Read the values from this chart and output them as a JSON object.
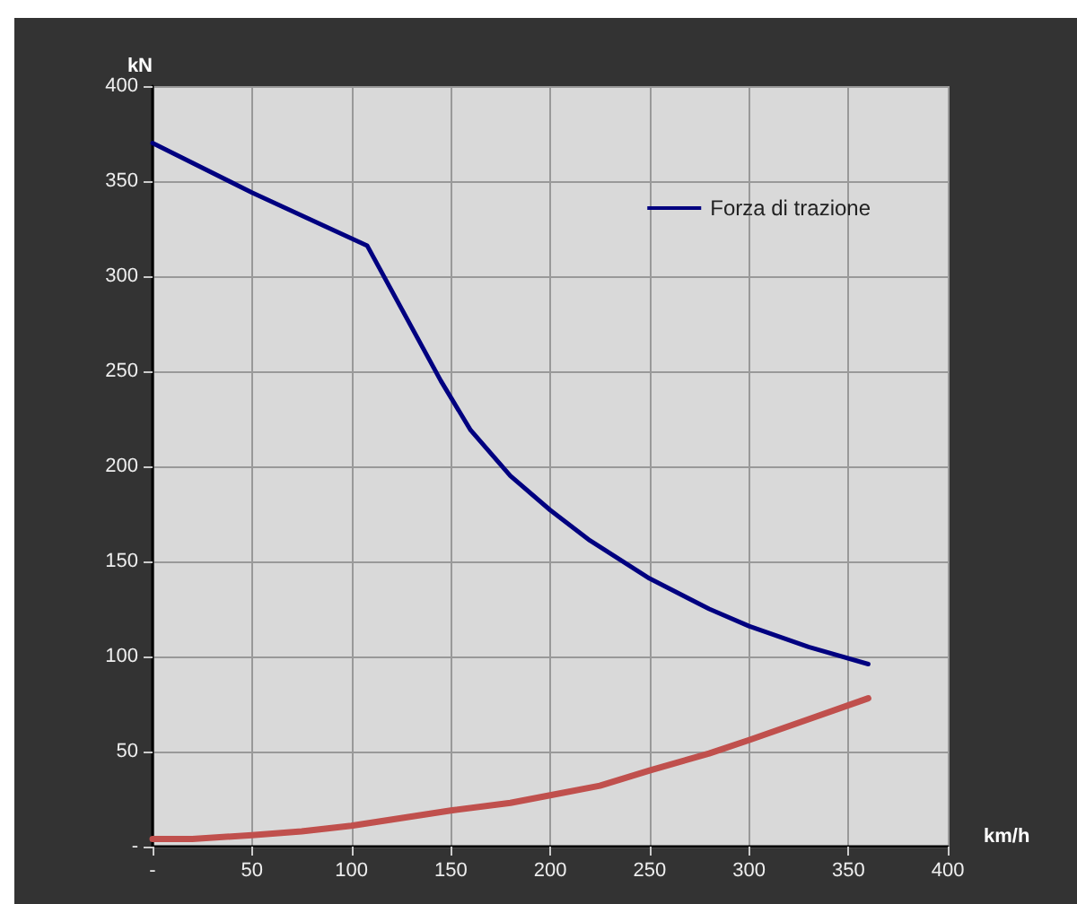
{
  "chart_data": {
    "type": "line",
    "xlabel": "km/h",
    "ylabel": "kN",
    "xlim": [
      0,
      400
    ],
    "xticks": [
      {
        "value": 0,
        "label": "-"
      },
      50,
      100,
      150,
      200,
      250,
      300,
      350,
      400
    ],
    "ylim": [
      0,
      400
    ],
    "yticks": [
      {
        "value": 0,
        "label": "-"
      },
      50,
      100,
      150,
      200,
      250,
      300,
      350,
      400
    ],
    "grid": true,
    "legend": "top right",
    "marker": "none",
    "line_style": "solid",
    "series": [
      {
        "name": "Forza di trazione",
        "color": "#000080",
        "x": [
          0,
          50,
          108,
          145,
          160,
          180,
          200,
          220,
          250,
          280,
          300,
          330,
          360
        ],
        "values": [
          370,
          344,
          316,
          245,
          219,
          195,
          177,
          161,
          141,
          125,
          116,
          105,
          96
        ]
      },
      {
        "color": "#c0504d",
        "x": [
          0,
          20,
          50,
          75,
          100,
          125,
          150,
          180,
          200,
          225,
          250,
          280,
          300,
          330,
          360
        ],
        "values": [
          4,
          4,
          6,
          8,
          11,
          15,
          19,
          23,
          27,
          32,
          40,
          49,
          56,
          67,
          78
        ]
      }
    ]
  }
}
